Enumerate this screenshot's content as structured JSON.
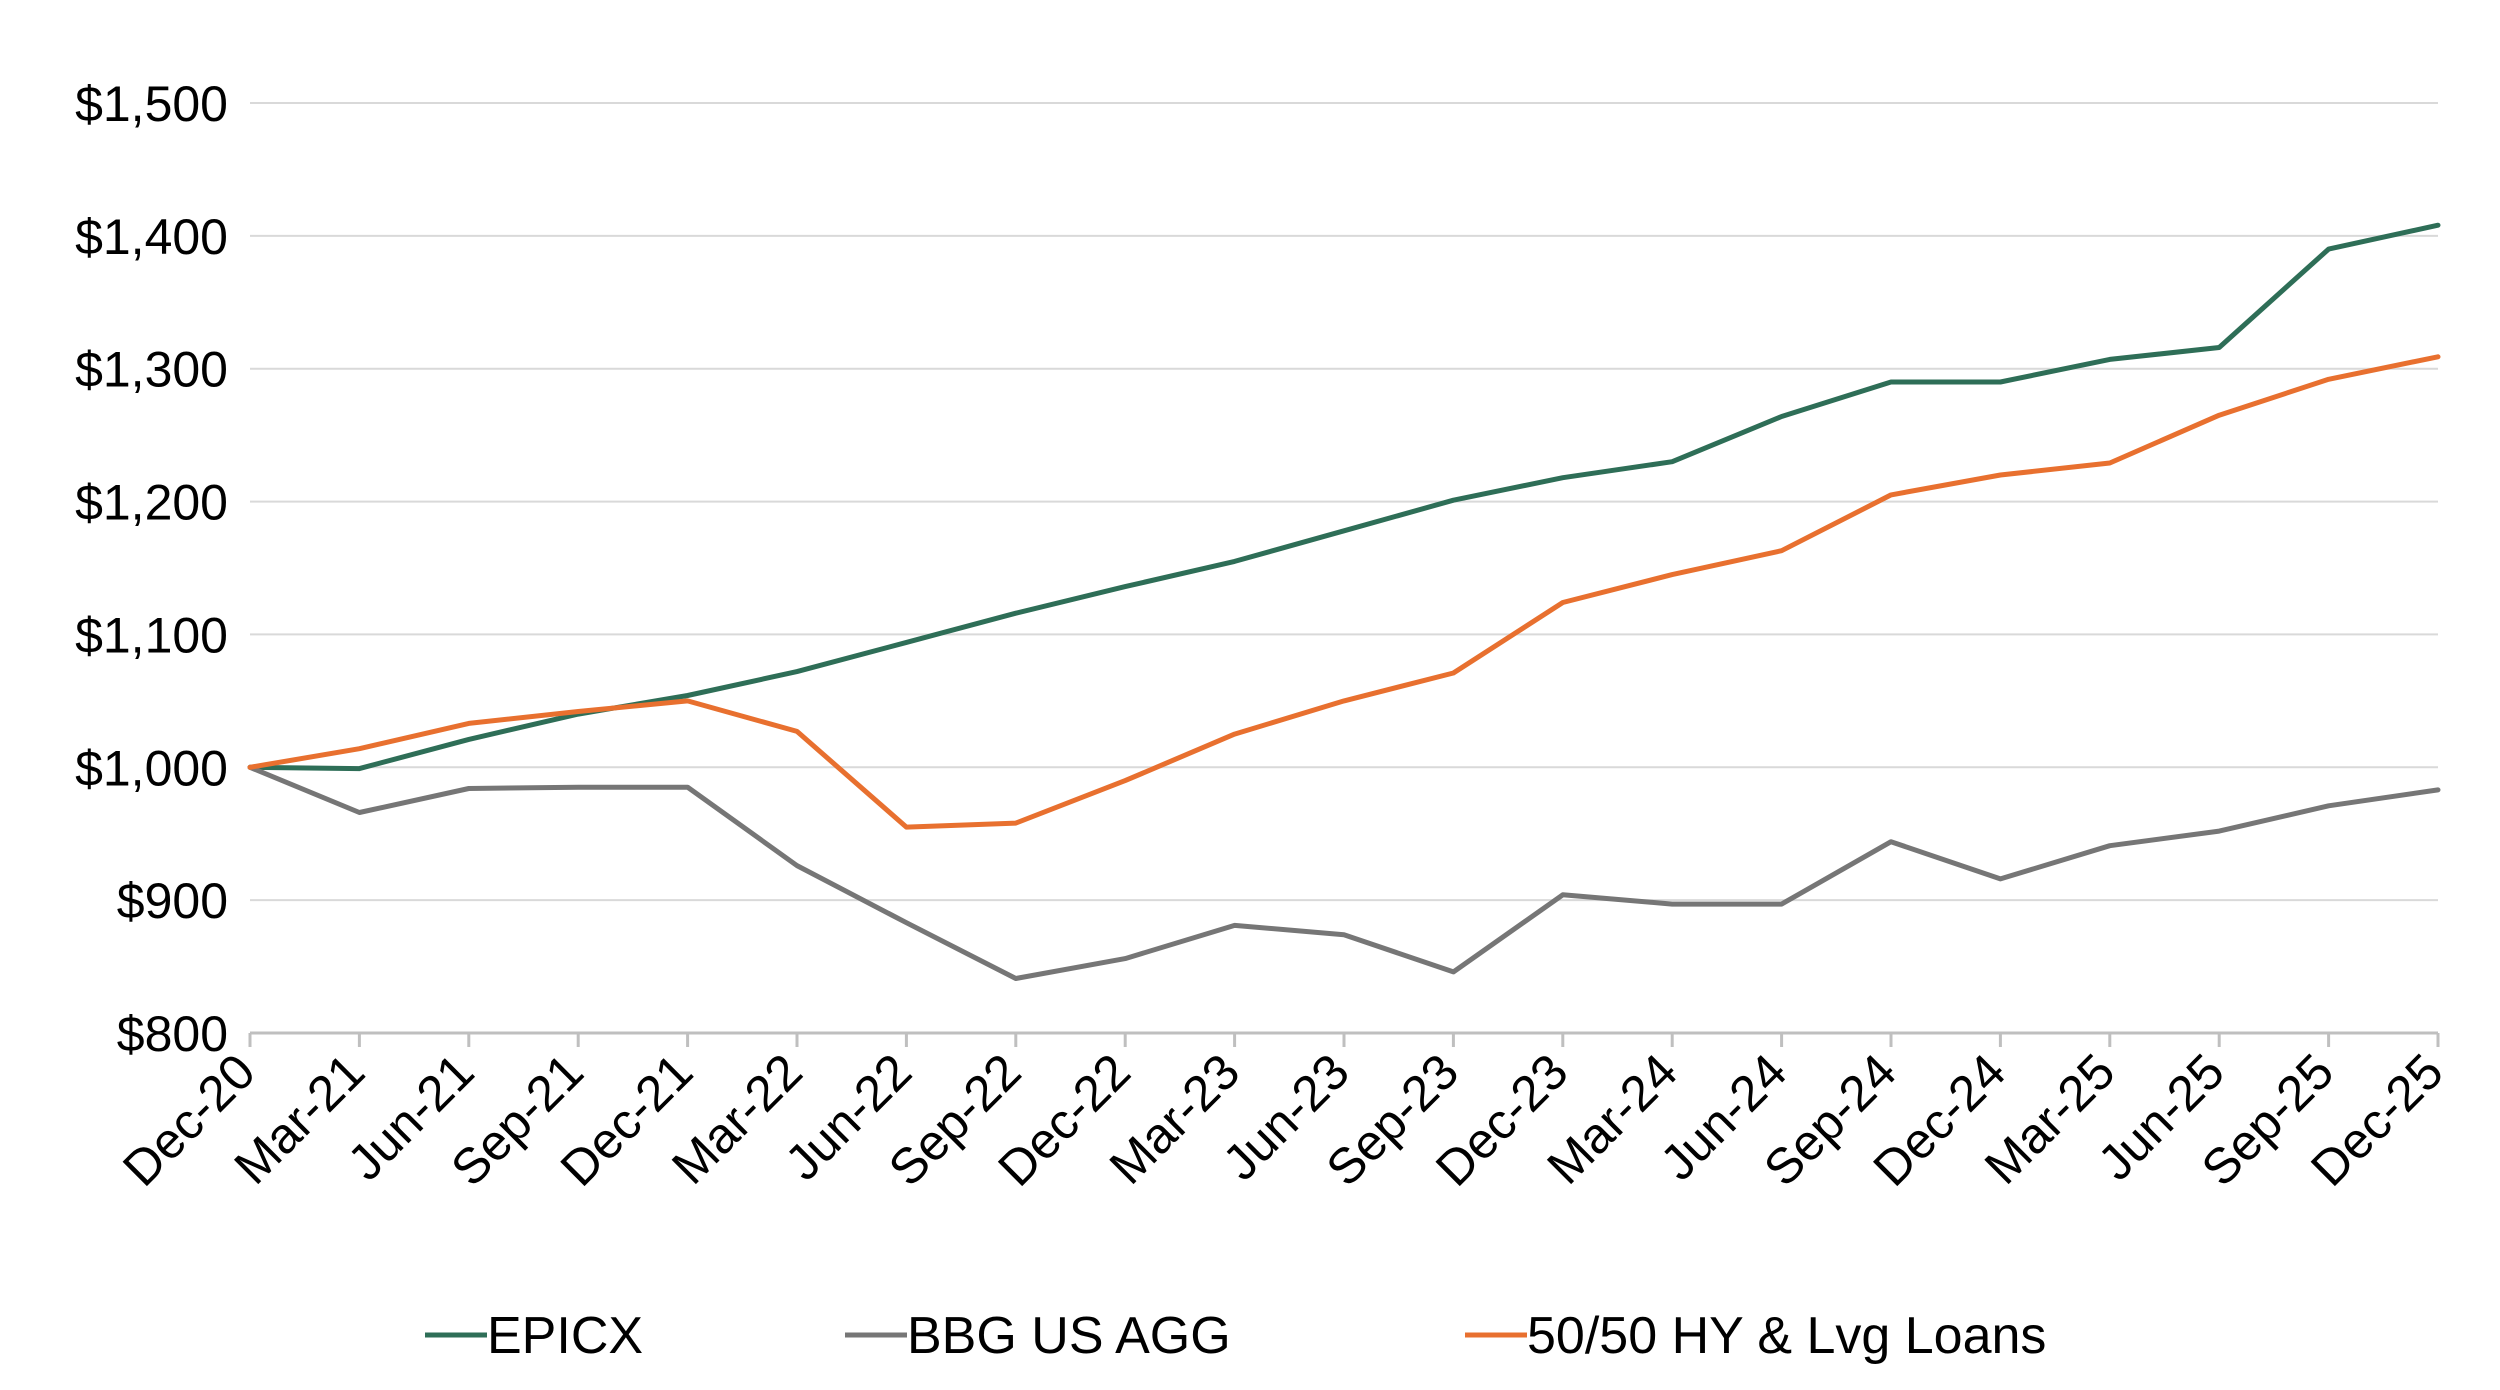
{
  "chart_data": {
    "type": "line",
    "title": "",
    "xlabel": "",
    "ylabel": "",
    "categories": [
      "Dec-20",
      "Mar-21",
      "Jun-21",
      "Sep-21",
      "Dec-21",
      "Mar-22",
      "Jun-22",
      "Sep-22",
      "Dec-22",
      "Mar-23",
      "Jun-23",
      "Sep-23",
      "Dec-23",
      "Mar-24",
      "Jun-24",
      "Sep-24",
      "Dec-24",
      "Mar-25",
      "Jun-25",
      "Sep-25",
      "Dec-25"
    ],
    "ylim": [
      800,
      1500
    ],
    "yticks": [
      800,
      900,
      1000,
      1100,
      1200,
      1300,
      1400,
      1500
    ],
    "ytick_labels": [
      "$800",
      "$900",
      "$1,000",
      "$1,100",
      "$1,200",
      "$1,300",
      "$1,400",
      "$1,500"
    ],
    "grid": "horizontal",
    "legend_position": "bottom",
    "series": [
      {
        "name": "EPICX",
        "color": "#2E6E57",
        "values": [
          1000,
          999,
          1021,
          1040,
          1054,
          1072,
          1094,
          1116,
          1136,
          1155,
          1178,
          1201,
          1218,
          1230,
          1264,
          1290,
          1290,
          1307,
          1316,
          1390,
          1408
        ]
      },
      {
        "name": "BBG US AGG",
        "color": "#767676",
        "values": [
          1000,
          966,
          984,
          985,
          985,
          926,
          883,
          841,
          856,
          881,
          874,
          846,
          904,
          897,
          897,
          944,
          916,
          941,
          952,
          971,
          983
        ]
      },
      {
        "name": "50/50 HY & Lvg Loans",
        "color": "#E8702F",
        "values": [
          1000,
          1014,
          1033,
          1042,
          1050,
          1027,
          955,
          958,
          990,
          1025,
          1050,
          1071,
          1124,
          1145,
          1163,
          1205,
          1220,
          1229,
          1265,
          1292,
          1309
        ]
      }
    ]
  }
}
